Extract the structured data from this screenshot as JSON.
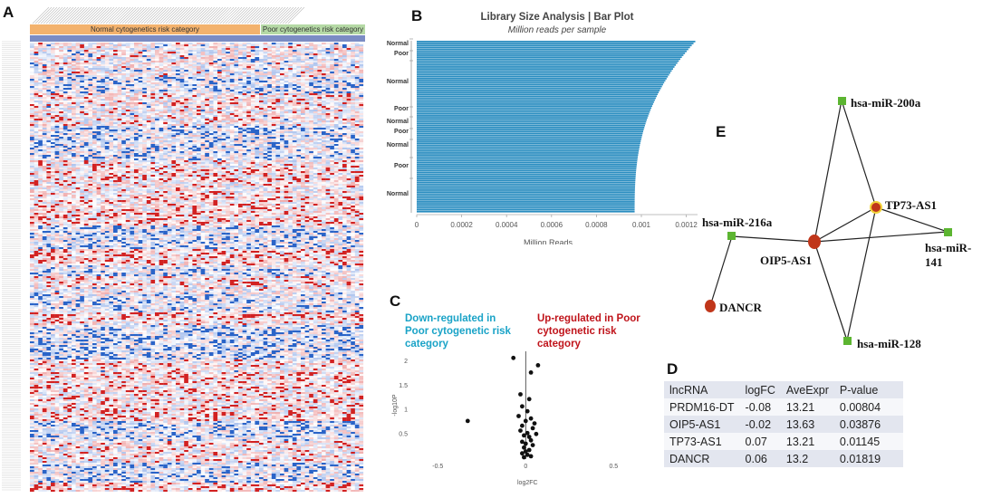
{
  "panels": {
    "a": "A",
    "b": "B",
    "c": "C",
    "d": "D",
    "e": "E"
  },
  "heatmap": {
    "normal_label": "Normal cytogenetics risk category",
    "poor_label": "Poor cytogenetics risk category",
    "colors": {
      "normal": "#f3b26d",
      "poor": "#b5d9a5",
      "strip": "#7b8cc4"
    }
  },
  "bar_plot": {
    "chart_data": {
      "type": "bar",
      "title": "Library Size Analysis | Bar Plot",
      "subtitle": "Million reads per sample",
      "xlabel": "Million Reads",
      "xlim": [
        0,
        0.00125
      ],
      "xticks": [
        "0",
        "0.0002",
        "0.0004",
        "0.0006",
        "0.0008",
        "0.001",
        "0.0012"
      ],
      "xtick_values": [
        0,
        0.0002,
        0.0004,
        0.0006,
        0.0008,
        0.001,
        0.0012
      ],
      "groups": [
        "Normal",
        "Poor",
        "Normal",
        "Poor",
        "Normal",
        "Poor",
        "Normal",
        "Poor",
        "Normal"
      ],
      "max_value": 0.00124,
      "min_value": 0.00097,
      "color": "#2a8dc0"
    }
  },
  "volcano": {
    "down_label": [
      "Down-regulated in",
      "Poor  cytogenetic risk",
      "category"
    ],
    "up_label": [
      "Up-regulated in Poor",
      "cytogenetic risk",
      "category"
    ],
    "down_color": "#1aa3c7",
    "up_color": "#c0141b",
    "chart_data": {
      "type": "scatter",
      "xlabel": "log2FC",
      "ylabel": "-log10P",
      "xlim": [
        -0.62,
        0.72
      ],
      "ylim": [
        0,
        2.15
      ],
      "xticks": [
        "-0.5",
        "0",
        "0.5"
      ],
      "xtick_values": [
        -0.5,
        0,
        0.5
      ],
      "yticks": [
        "0.5",
        "1",
        "1.5",
        "2"
      ],
      "ytick_values": [
        0.5,
        1,
        1.5,
        2
      ],
      "points": [
        [
          -0.33,
          0.75
        ],
        [
          -0.07,
          2.05
        ],
        [
          0.07,
          1.9
        ],
        [
          0.03,
          1.75
        ],
        [
          -0.03,
          1.3
        ],
        [
          0.02,
          1.2
        ],
        [
          -0.02,
          1.05
        ],
        [
          0.01,
          0.95
        ],
        [
          -0.04,
          0.85
        ],
        [
          0.03,
          0.8
        ],
        [
          0.0,
          0.75
        ],
        [
          0.05,
          0.7
        ],
        [
          -0.02,
          0.65
        ],
        [
          0.04,
          0.6
        ],
        [
          -0.03,
          0.55
        ],
        [
          0.01,
          0.5
        ],
        [
          0.06,
          0.48
        ],
        [
          -0.01,
          0.45
        ],
        [
          0.02,
          0.42
        ],
        [
          0.03,
          0.35
        ],
        [
          -0.02,
          0.32
        ],
        [
          0.0,
          0.28
        ],
        [
          0.04,
          0.25
        ],
        [
          -0.01,
          0.2
        ],
        [
          0.02,
          0.15
        ],
        [
          0.0,
          0.12
        ],
        [
          -0.02,
          0.08
        ],
        [
          0.01,
          0.05
        ],
        [
          0.03,
          0.02
        ],
        [
          -0.01,
          0.0
        ]
      ]
    }
  },
  "table": {
    "headers": [
      "lncRNA",
      "logFC",
      "AveExpr",
      "P-value"
    ],
    "rows": [
      [
        "PRDM16-DT",
        "-0.08",
        "13.21",
        "0.00804"
      ],
      [
        "OIP5-AS1",
        "-0.02",
        "13.63",
        "0.03876"
      ],
      [
        "TP73-AS1",
        "0.07",
        "13.21",
        "0.01145"
      ],
      [
        "DANCR",
        "0.06",
        "13.2",
        "0.01819"
      ]
    ]
  },
  "network": {
    "nodes": {
      "mir200a": "hsa-miR-200a",
      "tp73": "TP73-AS1",
      "mir216a": "hsa-miR-216a",
      "oip5": "OIP5-AS1",
      "mir141": "hsa-miR-141",
      "dancr": "DANCR",
      "mir128": "hsa-miR-128"
    },
    "colors": {
      "mirna": "#5cb531",
      "lncrna": "#c0361a",
      "highlight": "#f2d33b",
      "edge": "#222222"
    }
  }
}
